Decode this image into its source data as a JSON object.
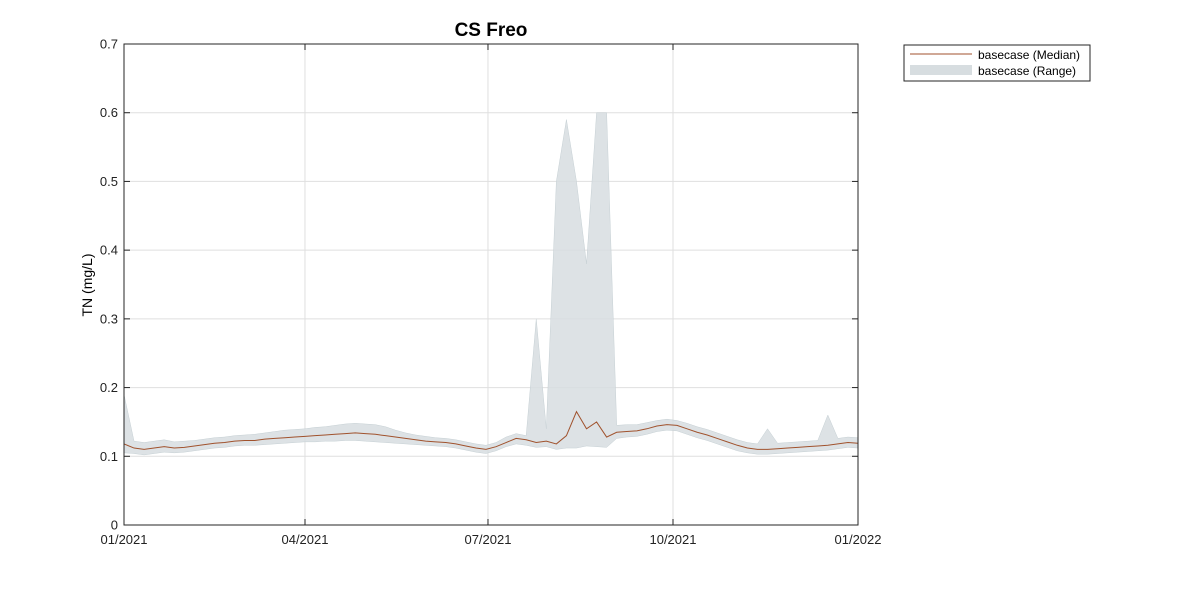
{
  "chart_data": {
    "type": "area",
    "title": "CS Freo",
    "xlabel": "",
    "ylabel": "TN (mg/L)",
    "xlim": [
      "2021-01-01",
      "2022-01-01"
    ],
    "ylim": [
      0,
      0.7
    ],
    "x_ticks": [
      {
        "date": "2021-01-01",
        "label": "01/2021"
      },
      {
        "date": "2021-04-01",
        "label": "04/2021"
      },
      {
        "date": "2021-07-01",
        "label": "07/2021"
      },
      {
        "date": "2021-10-01",
        "label": "10/2021"
      },
      {
        "date": "2022-01-01",
        "label": "01/2022"
      }
    ],
    "y_ticks": [
      {
        "value": 0,
        "label": "0"
      },
      {
        "value": 0.1,
        "label": "0.1"
      },
      {
        "value": 0.2,
        "label": "0.2"
      },
      {
        "value": 0.3,
        "label": "0.3"
      },
      {
        "value": 0.4,
        "label": "0.4"
      },
      {
        "value": 0.5,
        "label": "0.5"
      },
      {
        "value": 0.6,
        "label": "0.6"
      },
      {
        "value": 0.7,
        "label": "0.7"
      }
    ],
    "grid": true,
    "legend_position": "outside-top-right",
    "series": [
      {
        "name": "basecase (Median)",
        "kind": "line",
        "color": "#a0522d",
        "points": [
          [
            "2021-01-01",
            0.118
          ],
          [
            "2021-01-06",
            0.112
          ],
          [
            "2021-01-11",
            0.11
          ],
          [
            "2021-01-16",
            0.112
          ],
          [
            "2021-01-21",
            0.114
          ],
          [
            "2021-01-26",
            0.112
          ],
          [
            "2021-01-31",
            0.113
          ],
          [
            "2021-02-05",
            0.115
          ],
          [
            "2021-02-10",
            0.117
          ],
          [
            "2021-02-15",
            0.119
          ],
          [
            "2021-02-20",
            0.12
          ],
          [
            "2021-02-25",
            0.122
          ],
          [
            "2021-03-02",
            0.123
          ],
          [
            "2021-03-07",
            0.123
          ],
          [
            "2021-03-12",
            0.125
          ],
          [
            "2021-03-17",
            0.126
          ],
          [
            "2021-03-22",
            0.127
          ],
          [
            "2021-03-27",
            0.128
          ],
          [
            "2021-04-01",
            0.129
          ],
          [
            "2021-04-06",
            0.13
          ],
          [
            "2021-04-11",
            0.131
          ],
          [
            "2021-04-16",
            0.132
          ],
          [
            "2021-04-21",
            0.133
          ],
          [
            "2021-04-26",
            0.134
          ],
          [
            "2021-05-01",
            0.133
          ],
          [
            "2021-05-06",
            0.132
          ],
          [
            "2021-05-11",
            0.13
          ],
          [
            "2021-05-16",
            0.128
          ],
          [
            "2021-05-21",
            0.126
          ],
          [
            "2021-05-26",
            0.124
          ],
          [
            "2021-05-31",
            0.122
          ],
          [
            "2021-06-05",
            0.121
          ],
          [
            "2021-06-10",
            0.12
          ],
          [
            "2021-06-15",
            0.118
          ],
          [
            "2021-06-20",
            0.115
          ],
          [
            "2021-06-25",
            0.112
          ],
          [
            "2021-06-30",
            0.11
          ],
          [
            "2021-07-05",
            0.114
          ],
          [
            "2021-07-10",
            0.12
          ],
          [
            "2021-07-15",
            0.126
          ],
          [
            "2021-07-20",
            0.124
          ],
          [
            "2021-07-25",
            0.12
          ],
          [
            "2021-07-30",
            0.122
          ],
          [
            "2021-08-04",
            0.118
          ],
          [
            "2021-08-09",
            0.13
          ],
          [
            "2021-08-14",
            0.165
          ],
          [
            "2021-08-19",
            0.14
          ],
          [
            "2021-08-24",
            0.15
          ],
          [
            "2021-08-29",
            0.128
          ],
          [
            "2021-09-03",
            0.135
          ],
          [
            "2021-09-08",
            0.136
          ],
          [
            "2021-09-13",
            0.137
          ],
          [
            "2021-09-18",
            0.14
          ],
          [
            "2021-09-23",
            0.144
          ],
          [
            "2021-09-28",
            0.146
          ],
          [
            "2021-10-03",
            0.145
          ],
          [
            "2021-10-08",
            0.14
          ],
          [
            "2021-10-13",
            0.135
          ],
          [
            "2021-10-18",
            0.131
          ],
          [
            "2021-10-23",
            0.126
          ],
          [
            "2021-10-28",
            0.121
          ],
          [
            "2021-11-02",
            0.116
          ],
          [
            "2021-11-07",
            0.112
          ],
          [
            "2021-11-12",
            0.11
          ],
          [
            "2021-11-17",
            0.11
          ],
          [
            "2021-11-22",
            0.111
          ],
          [
            "2021-11-27",
            0.112
          ],
          [
            "2021-12-02",
            0.113
          ],
          [
            "2021-12-07",
            0.114
          ],
          [
            "2021-12-12",
            0.115
          ],
          [
            "2021-12-17",
            0.116
          ],
          [
            "2021-12-22",
            0.118
          ],
          [
            "2021-12-27",
            0.12
          ],
          [
            "2022-01-01",
            0.119
          ]
        ]
      },
      {
        "name": "basecase (Range)",
        "kind": "range",
        "color": "#d7dde0",
        "points": [
          [
            "2021-01-01",
            0.105,
            0.19
          ],
          [
            "2021-01-06",
            0.104,
            0.122
          ],
          [
            "2021-01-11",
            0.102,
            0.12
          ],
          [
            "2021-01-16",
            0.104,
            0.122
          ],
          [
            "2021-01-21",
            0.106,
            0.124
          ],
          [
            "2021-01-26",
            0.105,
            0.121
          ],
          [
            "2021-01-31",
            0.106,
            0.122
          ],
          [
            "2021-02-05",
            0.108,
            0.123
          ],
          [
            "2021-02-10",
            0.11,
            0.125
          ],
          [
            "2021-02-15",
            0.112,
            0.127
          ],
          [
            "2021-02-20",
            0.113,
            0.128
          ],
          [
            "2021-02-25",
            0.115,
            0.13
          ],
          [
            "2021-03-02",
            0.116,
            0.131
          ],
          [
            "2021-03-07",
            0.116,
            0.132
          ],
          [
            "2021-03-12",
            0.117,
            0.134
          ],
          [
            "2021-03-17",
            0.118,
            0.136
          ],
          [
            "2021-03-22",
            0.119,
            0.138
          ],
          [
            "2021-03-27",
            0.12,
            0.139
          ],
          [
            "2021-04-01",
            0.121,
            0.14
          ],
          [
            "2021-04-06",
            0.121,
            0.142
          ],
          [
            "2021-04-11",
            0.122,
            0.143
          ],
          [
            "2021-04-16",
            0.122,
            0.145
          ],
          [
            "2021-04-21",
            0.123,
            0.147
          ],
          [
            "2021-04-26",
            0.123,
            0.148
          ],
          [
            "2021-05-01",
            0.122,
            0.147
          ],
          [
            "2021-05-06",
            0.121,
            0.146
          ],
          [
            "2021-05-11",
            0.12,
            0.143
          ],
          [
            "2021-05-16",
            0.119,
            0.138
          ],
          [
            "2021-05-21",
            0.118,
            0.134
          ],
          [
            "2021-05-26",
            0.117,
            0.131
          ],
          [
            "2021-05-31",
            0.116,
            0.129
          ],
          [
            "2021-06-05",
            0.115,
            0.127
          ],
          [
            "2021-06-10",
            0.114,
            0.126
          ],
          [
            "2021-06-15",
            0.112,
            0.124
          ],
          [
            "2021-06-20",
            0.109,
            0.121
          ],
          [
            "2021-06-25",
            0.106,
            0.118
          ],
          [
            "2021-06-30",
            0.104,
            0.116
          ],
          [
            "2021-07-05",
            0.108,
            0.12
          ],
          [
            "2021-07-10",
            0.114,
            0.128
          ],
          [
            "2021-07-15",
            0.118,
            0.133
          ],
          [
            "2021-07-20",
            0.116,
            0.13
          ],
          [
            "2021-07-25",
            0.113,
            0.3
          ],
          [
            "2021-07-30",
            0.114,
            0.14
          ],
          [
            "2021-08-04",
            0.11,
            0.5
          ],
          [
            "2021-08-09",
            0.112,
            0.59
          ],
          [
            "2021-08-14",
            0.112,
            0.5
          ],
          [
            "2021-08-19",
            0.115,
            0.38
          ],
          [
            "2021-08-24",
            0.114,
            0.6
          ],
          [
            "2021-08-29",
            0.113,
            0.6
          ],
          [
            "2021-09-03",
            0.126,
            0.145
          ],
          [
            "2021-09-08",
            0.128,
            0.146
          ],
          [
            "2021-09-13",
            0.129,
            0.146
          ],
          [
            "2021-09-18",
            0.132,
            0.149
          ],
          [
            "2021-09-23",
            0.136,
            0.152
          ],
          [
            "2021-09-28",
            0.138,
            0.154
          ],
          [
            "2021-10-03",
            0.137,
            0.152
          ],
          [
            "2021-10-08",
            0.132,
            0.148
          ],
          [
            "2021-10-13",
            0.127,
            0.143
          ],
          [
            "2021-10-18",
            0.123,
            0.139
          ],
          [
            "2021-10-23",
            0.118,
            0.134
          ],
          [
            "2021-10-28",
            0.113,
            0.129
          ],
          [
            "2021-11-02",
            0.108,
            0.124
          ],
          [
            "2021-11-07",
            0.105,
            0.12
          ],
          [
            "2021-11-12",
            0.103,
            0.118
          ],
          [
            "2021-11-17",
            0.103,
            0.14
          ],
          [
            "2021-11-22",
            0.104,
            0.119
          ],
          [
            "2021-11-27",
            0.105,
            0.12
          ],
          [
            "2021-12-02",
            0.106,
            0.121
          ],
          [
            "2021-12-07",
            0.107,
            0.122
          ],
          [
            "2021-12-12",
            0.108,
            0.123
          ],
          [
            "2021-12-17",
            0.109,
            0.16
          ],
          [
            "2021-12-22",
            0.111,
            0.126
          ],
          [
            "2021-12-27",
            0.113,
            0.128
          ],
          [
            "2022-01-01",
            0.112,
            0.127
          ]
        ]
      }
    ]
  }
}
